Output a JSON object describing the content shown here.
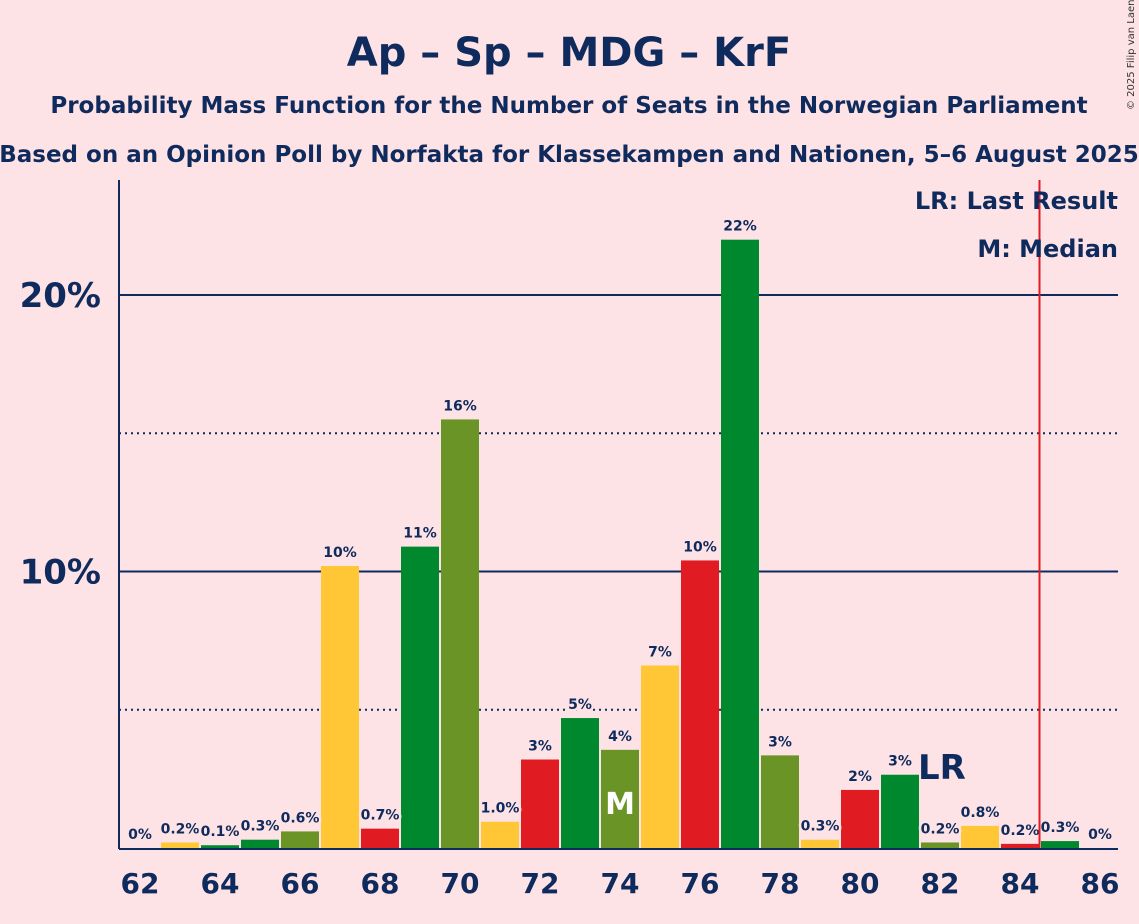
{
  "chart_data": {
    "type": "bar",
    "title": "Ap – Sp – MDG – KrF",
    "subtitle": "Probability Mass Function for the Number of Seats in the Norwegian Parliament",
    "subtitle2": "Based on an Opinion Poll by Norfakta for Klassekampen and Nationen, 5–6 August 2025",
    "copyright": "© 2025 Filip van Laenen",
    "legend": {
      "lr": "LR: Last Result",
      "median": "M: Median"
    },
    "xlabel": "",
    "ylabel": "",
    "ylim": [
      0,
      24
    ],
    "yticks": [
      {
        "value": 10,
        "label": "10%"
      },
      {
        "value": 20,
        "label": "20%"
      }
    ],
    "minor_gridlines": [
      5,
      15
    ],
    "x_tick_labels": [
      "62",
      "64",
      "66",
      "68",
      "70",
      "72",
      "74",
      "76",
      "78",
      "80",
      "82",
      "84",
      "86"
    ],
    "categories": [
      62,
      63,
      64,
      65,
      66,
      67,
      68,
      69,
      70,
      71,
      72,
      73,
      74,
      75,
      76,
      77,
      78,
      79,
      80,
      81,
      82,
      83,
      84,
      85,
      86
    ],
    "values": [
      0,
      0.2,
      0.1,
      0.3,
      0.6,
      10.2,
      0.7,
      10.9,
      15.5,
      0.95,
      3.2,
      4.7,
      3.55,
      6.6,
      10.4,
      22.0,
      3.35,
      0.3,
      2.1,
      2.65,
      0.2,
      0.8,
      0.15,
      0.25,
      0
    ],
    "labels": [
      "0%",
      "0.2%",
      "0.1%",
      "0.3%",
      "0.6%",
      "10%",
      "0.7%",
      "11%",
      "16%",
      "1.0%",
      "3%",
      "5%",
      "4%",
      "7%",
      "10%",
      "22%",
      "3%",
      "0.3%",
      "2%",
      "3%",
      "0.2%",
      "0.8%",
      "0.2%",
      "0.3%",
      "0%"
    ],
    "bar_colors": [
      "#00882E",
      "#FFC735",
      "#00882E",
      "#00882E",
      "#6B9426",
      "#FFC735",
      "#E01B22",
      "#00882E",
      "#6B9426",
      "#FFC735",
      "#E01B22",
      "#00882E",
      "#6B9426",
      "#FFC735",
      "#E01B22",
      "#00882E",
      "#6B9426",
      "#FFC735",
      "#E01B22",
      "#00882E",
      "#6B9426",
      "#FFC735",
      "#E01B22",
      "#00882E",
      "#6B9426"
    ],
    "median_seat": 74,
    "median_label": "M",
    "last_result_seat": 85,
    "last_result_label": "LR",
    "lr_label_seat": 82,
    "colors": {
      "background": "#FDE3E5",
      "text": "#0F2A5C",
      "lr_line": "#E01B22"
    }
  }
}
